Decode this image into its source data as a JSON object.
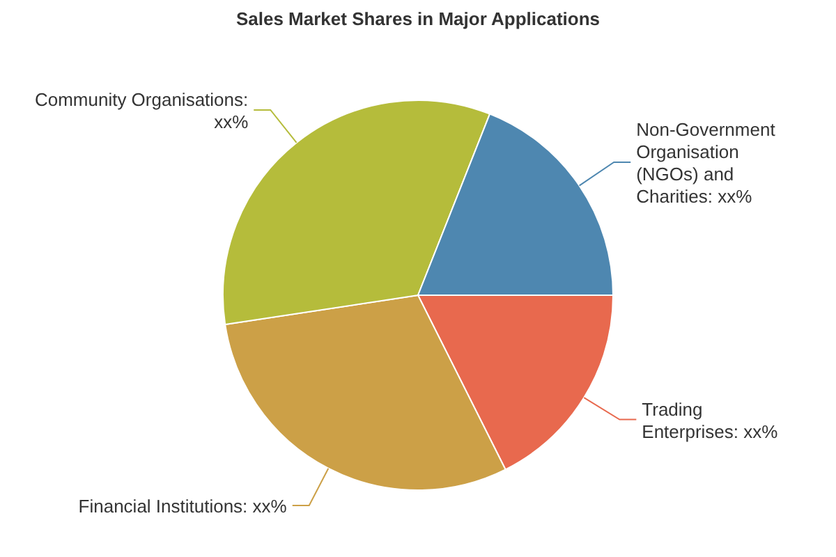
{
  "chart_data": {
    "type": "pie",
    "title": "Sales Market Shares in Major Applications",
    "categories": [
      "Trading Enterprises: xx%",
      "Financial Institutions: xx%",
      "Community Organisations: xx%",
      "Non-Government Organisation (NGOs) and Charities: xx%"
    ],
    "values": [
      17.6,
      30,
      33.4,
      19
    ],
    "colors": [
      "#e8694e",
      "#cca047",
      "#b5bc3b",
      "#4e87b0"
    ]
  }
}
